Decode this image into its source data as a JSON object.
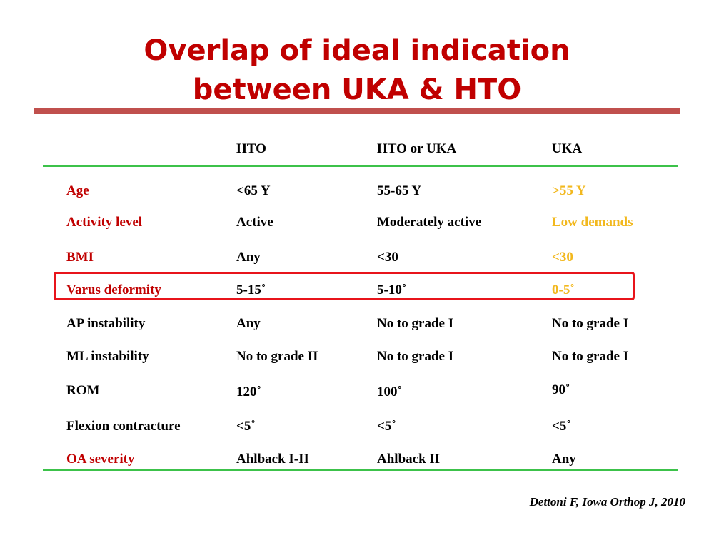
{
  "slide": {
    "title_line1": "Overlap of ideal indication",
    "title_line2": "between UKA & HTO"
  },
  "table": {
    "headers": [
      "",
      "HTO",
      "HTO or UKA",
      "UKA"
    ],
    "rows": [
      {
        "label": "Age",
        "hto": "<65 Y",
        "either": "55-65 Y",
        "uka": ">55 Y"
      },
      {
        "label": "Activity level",
        "hto": "Active",
        "either": "Moderately active",
        "uka": "Low demands"
      },
      {
        "label": "BMI",
        "hto": "Any",
        "either": "<30",
        "uka": "<30"
      },
      {
        "label": "Varus deformity",
        "hto": "5-15˚",
        "either": "5-10˚",
        "uka": "0-5˚"
      },
      {
        "label": "AP instability",
        "hto": "Any",
        "either": "No to grade I",
        "uka": "No to grade I"
      },
      {
        "label": "ML instability",
        "hto": "No to grade II",
        "either": "No to grade I",
        "uka": "No to grade I"
      },
      {
        "label": "ROM",
        "hto": "120˚",
        "either": "100˚",
        "uka": "90˚"
      },
      {
        "label": "Flexion contracture",
        "hto": "<5˚",
        "either": "<5˚",
        "uka": "<5˚"
      },
      {
        "label": "OA severity",
        "hto": "Ahlback I-II",
        "either": "Ahlback II",
        "uka": "Any"
      }
    ]
  },
  "citation": "Dettoni F, Iowa Orthop J, 2010",
  "colors": {
    "title": "#c00000",
    "title_rule": "#c0504d",
    "table_rule": "#3cc24a",
    "label_highlight": "#c00000",
    "uka_highlight": "#f2b81e",
    "box": "#e8141b"
  }
}
